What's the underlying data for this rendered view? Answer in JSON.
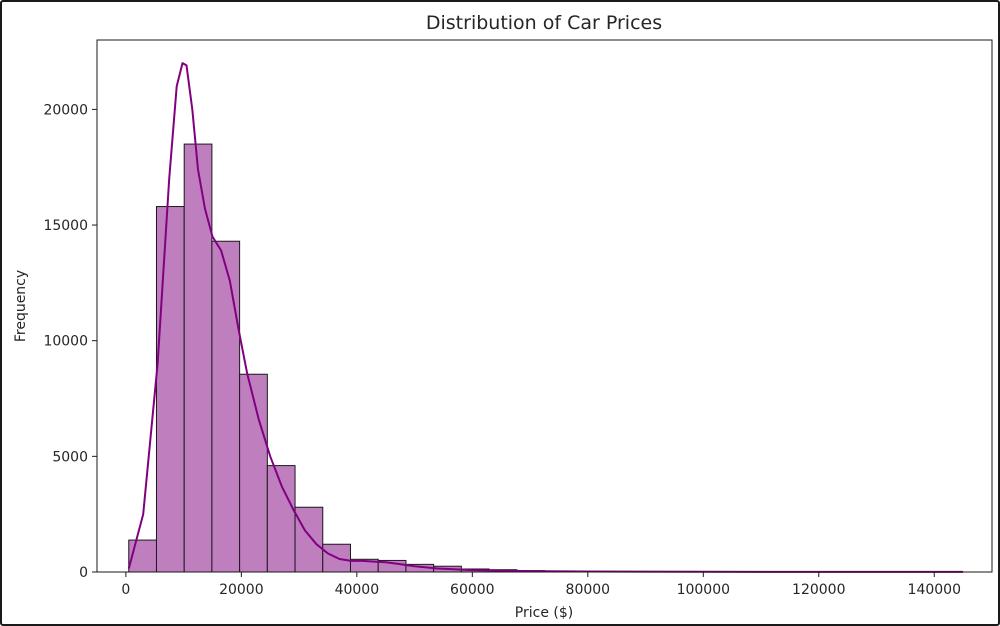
{
  "chart_data": {
    "type": "bar",
    "title": "Distribution of Car Prices",
    "xlabel": "Price ($)",
    "ylabel": "Frequency",
    "xlim": [
      -5000,
      150000
    ],
    "ylim": [
      0,
      23000
    ],
    "xticks": [
      0,
      20000,
      40000,
      60000,
      80000,
      100000,
      120000,
      140000
    ],
    "xtick_labels": [
      "0",
      "20000",
      "40000",
      "60000",
      "80000",
      "100000",
      "120000",
      "140000"
    ],
    "yticks": [
      0,
      5000,
      10000,
      15000,
      20000
    ],
    "ytick_labels": [
      "0",
      "5000",
      "10000",
      "15000",
      "20000"
    ],
    "grid": false,
    "bins": [
      {
        "x0": 500,
        "x1": 5300,
        "value": 1380
      },
      {
        "x0": 5300,
        "x1": 10100,
        "value": 15800
      },
      {
        "x0": 10100,
        "x1": 14900,
        "value": 18500
      },
      {
        "x0": 14900,
        "x1": 19700,
        "value": 14300
      },
      {
        "x0": 19700,
        "x1": 24500,
        "value": 8550
      },
      {
        "x0": 24500,
        "x1": 29300,
        "value": 4600
      },
      {
        "x0": 29300,
        "x1": 34100,
        "value": 2800
      },
      {
        "x0": 34100,
        "x1": 38900,
        "value": 1200
      },
      {
        "x0": 38900,
        "x1": 43700,
        "value": 550
      },
      {
        "x0": 43700,
        "x1": 48500,
        "value": 500
      },
      {
        "x0": 48500,
        "x1": 53300,
        "value": 330
      },
      {
        "x0": 53300,
        "x1": 58100,
        "value": 250
      },
      {
        "x0": 58100,
        "x1": 62900,
        "value": 130
      },
      {
        "x0": 62900,
        "x1": 67700,
        "value": 100
      },
      {
        "x0": 67700,
        "x1": 72500,
        "value": 60
      },
      {
        "x0": 72500,
        "x1": 77300,
        "value": 40
      },
      {
        "x0": 77300,
        "x1": 82100,
        "value": 25
      },
      {
        "x0": 82100,
        "x1": 86900,
        "value": 18
      },
      {
        "x0": 86900,
        "x1": 91700,
        "value": 12
      },
      {
        "x0": 91700,
        "x1": 96500,
        "value": 10
      },
      {
        "x0": 96500,
        "x1": 101300,
        "value": 8
      },
      {
        "x0": 101300,
        "x1": 106100,
        "value": 6
      },
      {
        "x0": 106100,
        "x1": 110900,
        "value": 5
      },
      {
        "x0": 110900,
        "x1": 115700,
        "value": 4
      },
      {
        "x0": 115700,
        "x1": 120500,
        "value": 3
      },
      {
        "x0": 120500,
        "x1": 125300,
        "value": 3
      },
      {
        "x0": 125300,
        "x1": 130100,
        "value": 2
      },
      {
        "x0": 130100,
        "x1": 134900,
        "value": 2
      },
      {
        "x0": 134900,
        "x1": 139700,
        "value": 1
      },
      {
        "x0": 139700,
        "x1": 144500,
        "value": 1
      }
    ],
    "kde": {
      "x": [
        500,
        3000,
        5500,
        7500,
        8800,
        9800,
        10500,
        11500,
        12500,
        13700,
        15000,
        16500,
        18000,
        19500,
        21000,
        23000,
        25000,
        27000,
        29000,
        31000,
        33000,
        35000,
        37000,
        39000,
        41000,
        43000,
        45000,
        47000,
        50000,
        54000,
        60000,
        70000,
        80000,
        100000,
        120000,
        145000
      ],
      "y": [
        150,
        2500,
        9000,
        17000,
        21000,
        22000,
        21900,
        20000,
        17400,
        15700,
        14500,
        13900,
        12600,
        10500,
        8600,
        6600,
        5000,
        3700,
        2700,
        1800,
        1200,
        800,
        560,
        480,
        480,
        450,
        420,
        360,
        250,
        150,
        80,
        40,
        20,
        10,
        5,
        3
      ]
    },
    "bar_color": "#bf7fbf",
    "bar_edge_color": "#1a1a1a",
    "kde_color": "#800080"
  }
}
